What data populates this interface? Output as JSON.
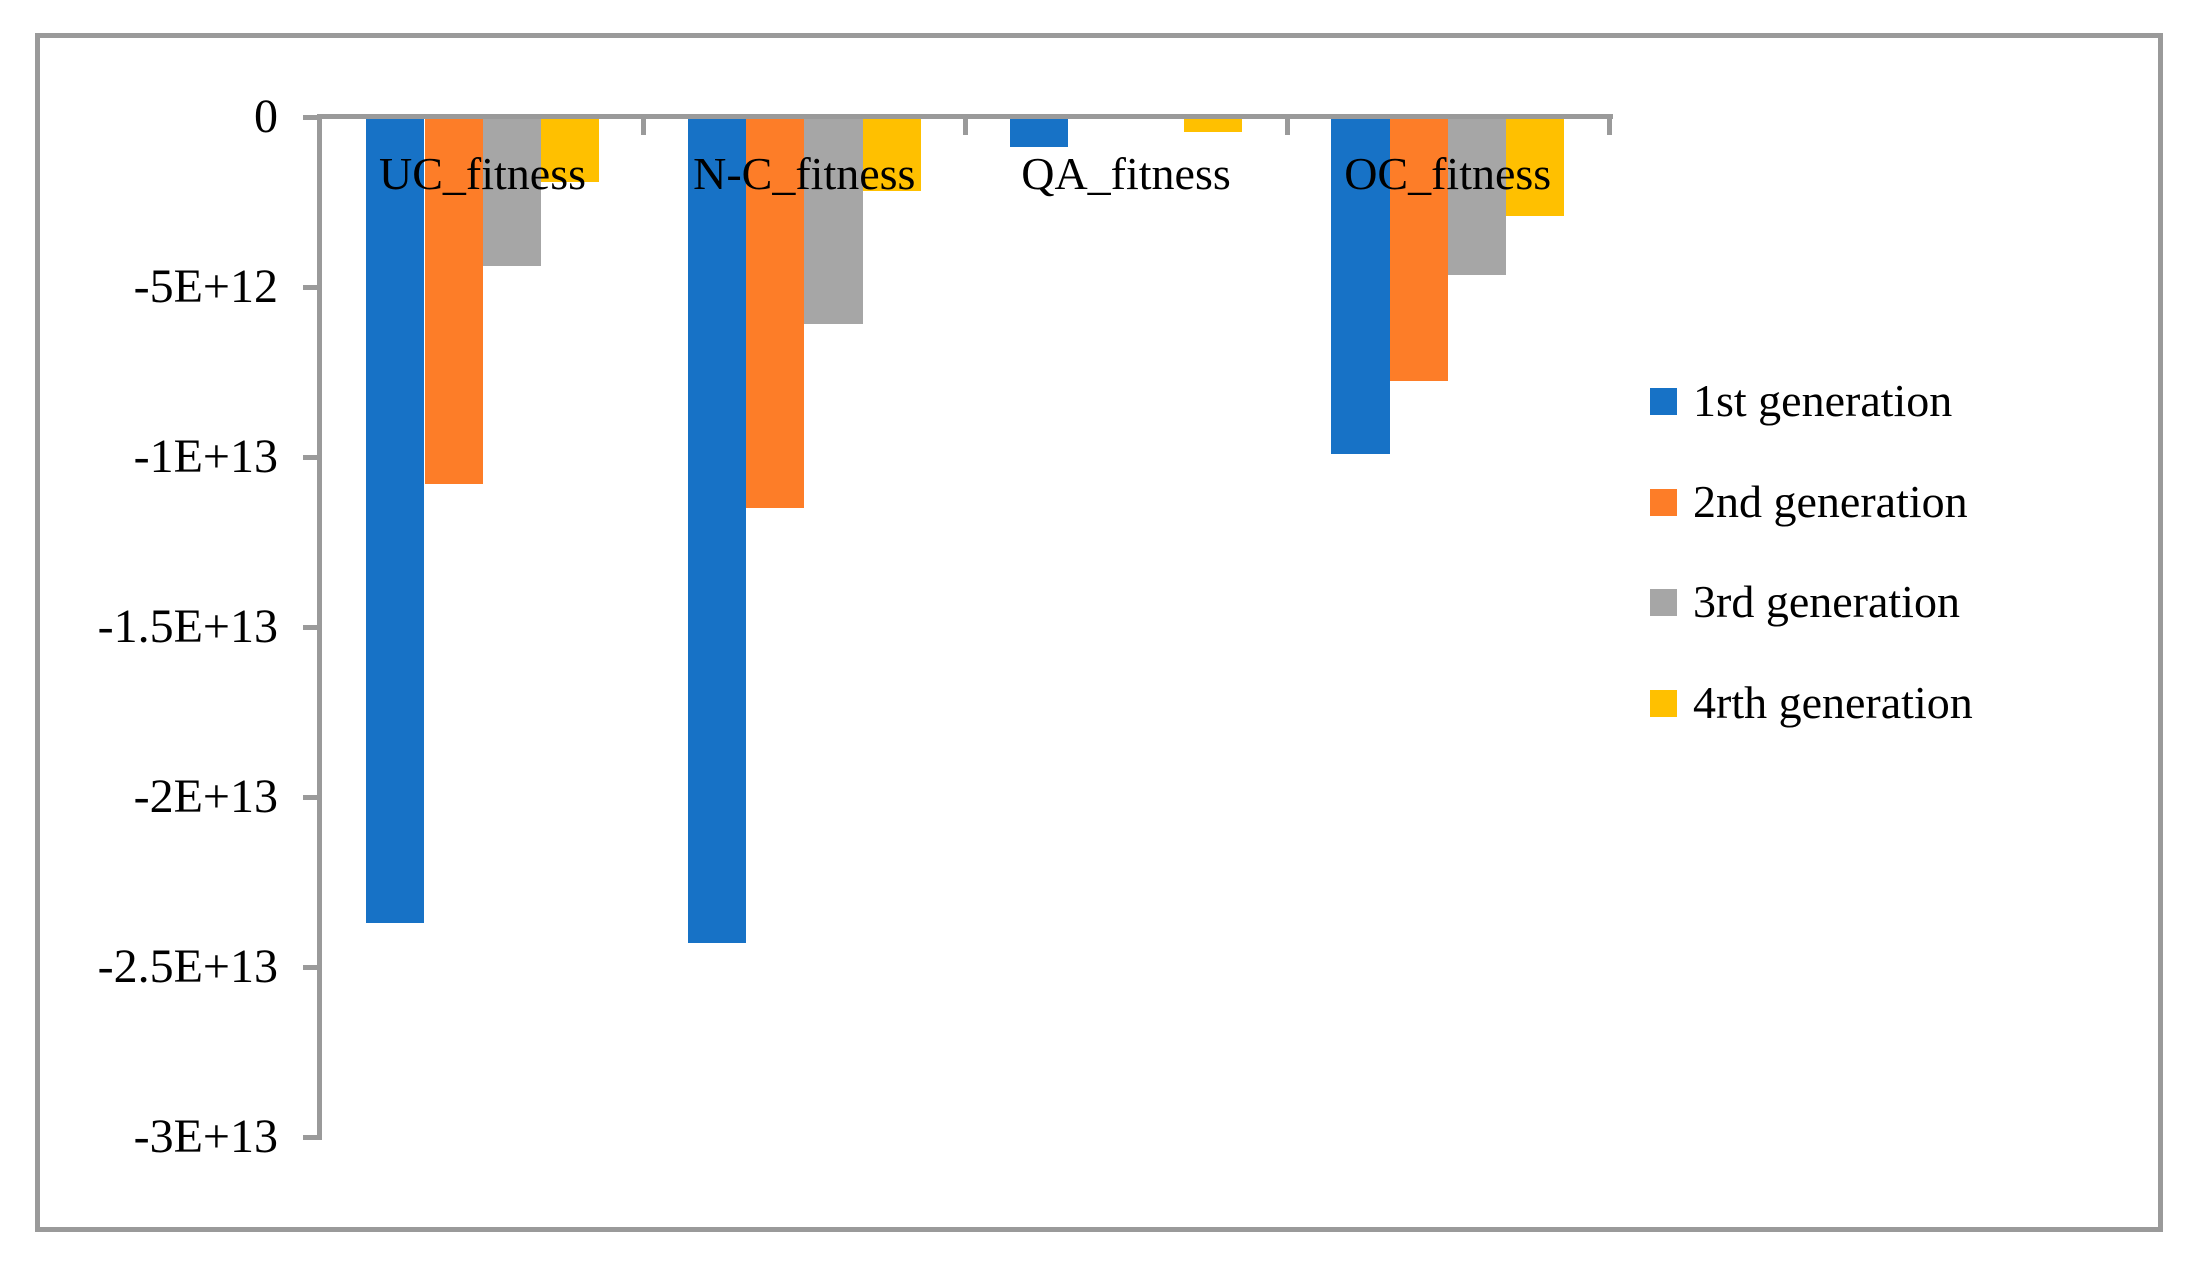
{
  "chart_data": {
    "type": "bar",
    "title": "",
    "orientation": "vertical-negative",
    "categories": [
      "UC_fitness",
      "N-C_fitness",
      "QA_fitness",
      "OC_fitness"
    ],
    "series": [
      {
        "name": "1st generation",
        "color": "#1772C6",
        "values": [
          -23700000000000,
          -24300000000000,
          -870000000000,
          -9900000000000
        ]
      },
      {
        "name": "2nd generation",
        "color": "#FD7D28",
        "values": [
          -10800000000000,
          -11500000000000,
          0,
          -7760000000000
        ]
      },
      {
        "name": "3rd generation",
        "color": "#A6A6A6",
        "values": [
          -4370000000000,
          -6090000000000,
          0,
          -4650000000000
        ]
      },
      {
        "name": "4rth generation",
        "color": "#FFC000",
        "values": [
          -1920000000000,
          -2170000000000,
          -430000000000,
          -2900000000000
        ]
      }
    ],
    "y_axis": {
      "min": -30000000000000,
      "max": 0,
      "tick_interval": 5000000000000,
      "tick_labels": [
        "0",
        "-5E+12",
        "-1E+13",
        "-1.5E+13",
        "-2E+13",
        "-2.5E+13",
        "-3E+13"
      ]
    },
    "x_axis": {
      "label": ""
    },
    "legend_position": "right",
    "grid": false,
    "colors": {
      "axis": "#9A9A9A",
      "border": "#9A9A9A",
      "text": "#000000",
      "background": "#FFFFFF"
    }
  }
}
